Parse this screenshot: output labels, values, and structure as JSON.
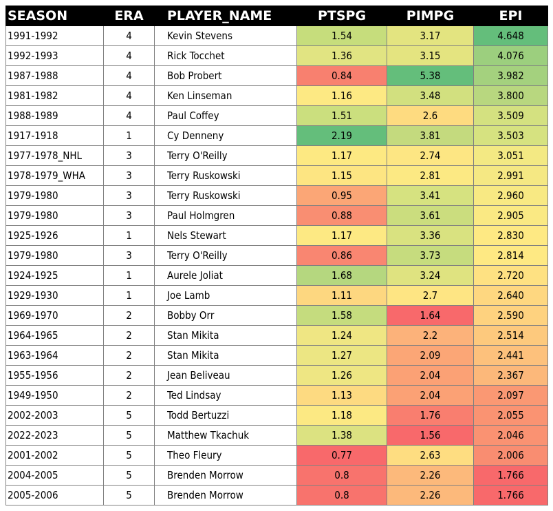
{
  "table": {
    "headers": {
      "season": "SEASON",
      "era": "ERA",
      "player": "PLAYER_NAME",
      "ptspg": "PTSPG",
      "pimpg": "PIMPG",
      "epi": "EPI"
    },
    "rows": [
      {
        "season": "1991-1992",
        "era": "4",
        "player": "Kevin Stevens",
        "ptspg": "1.54",
        "pimpg": "3.17",
        "epi": "4.648",
        "ptspg_color": "#c6dd7c",
        "pimpg_color": "#e3e480",
        "epi_color": "#64be7b"
      },
      {
        "season": "1992-1993",
        "era": "4",
        "player": "Rick Tocchet",
        "ptspg": "1.36",
        "pimpg": "3.15",
        "epi": "4.076",
        "ptspg_color": "#e1e482",
        "pimpg_color": "#e4e480",
        "epi_color": "#9ccf7e"
      },
      {
        "season": "1987-1988",
        "era": "4",
        "player": "Bob Probert",
        "ptspg": "0.84",
        "pimpg": "5.38",
        "epi": "3.982",
        "ptspg_color": "#f8806f",
        "pimpg_color": "#64be7b",
        "epi_color": "#a4d17e"
      },
      {
        "season": "1981-1982",
        "era": "4",
        "player": "Ken Linseman",
        "ptspg": "1.16",
        "pimpg": "3.48",
        "epi": "3.800",
        "ptspg_color": "#fde983",
        "pimpg_color": "#d2e07f",
        "epi_color": "#b8d77f"
      },
      {
        "season": "1988-1989",
        "era": "4",
        "player": "Paul Coffey",
        "ptspg": "1.51",
        "pimpg": "2.6",
        "epi": "3.509",
        "ptspg_color": "#cbdf7e",
        "pimpg_color": "#fedb80",
        "epi_color": "#d4e180"
      },
      {
        "season": "1917-1918",
        "era": "1",
        "player": "Cy Denneny",
        "ptspg": "2.19",
        "pimpg": "3.81",
        "epi": "3.503",
        "ptspg_color": "#64be7b",
        "pimpg_color": "#c4da7e",
        "epi_color": "#d6e280"
      },
      {
        "season": "1977-1978_NHL",
        "era": "3",
        "player": "Terry O'Reilly",
        "ptspg": "1.17",
        "pimpg": "2.74",
        "epi": "3.051",
        "ptspg_color": "#fde982",
        "pimpg_color": "#fde683",
        "epi_color": "#f3e983"
      },
      {
        "season": "1978-1979_WHA",
        "era": "3",
        "player": "Terry Ruskowski",
        "ptspg": "1.15",
        "pimpg": "2.81",
        "epi": "2.991",
        "ptspg_color": "#fde582",
        "pimpg_color": "#fce983",
        "epi_color": "#f5e883"
      },
      {
        "season": "1979-1980",
        "era": "3",
        "player": "Terry Ruskowski",
        "ptspg": "0.95",
        "pimpg": "3.41",
        "epi": "2.960",
        "ptspg_color": "#fba676",
        "pimpg_color": "#d6e280",
        "epi_color": "#f8e983"
      },
      {
        "season": "1979-1980",
        "era": "3",
        "player": "Paul Holmgren",
        "ptspg": "0.88",
        "pimpg": "3.61",
        "epi": "2.905",
        "ptspg_color": "#f98e72",
        "pimpg_color": "#cbdd7e",
        "epi_color": "#fae983"
      },
      {
        "season": "1925-1926",
        "era": "1",
        "player": "Nels Stewart",
        "ptspg": "1.17",
        "pimpg": "3.36",
        "epi": "2.830",
        "ptspg_color": "#fde983",
        "pimpg_color": "#d9e280",
        "epi_color": "#fee983"
      },
      {
        "season": "1979-1980",
        "era": "3",
        "player": "Terry O'Reilly",
        "ptspg": "0.86",
        "pimpg": "3.73",
        "epi": "2.814",
        "ptspg_color": "#f98671",
        "pimpg_color": "#c6dc7e",
        "epi_color": "#fee983"
      },
      {
        "season": "1924-1925",
        "era": "1",
        "player": "Aurele Joliat",
        "ptspg": "1.68",
        "pimpg": "3.24",
        "epi": "2.720",
        "ptspg_color": "#b5d77f",
        "pimpg_color": "#dfe380",
        "epi_color": "#fee182"
      },
      {
        "season": "1929-1930",
        "era": "1",
        "player": "Joe Lamb",
        "ptspg": "1.11",
        "pimpg": "2.7",
        "epi": "2.640",
        "ptspg_color": "#fdd780",
        "pimpg_color": "#fee583",
        "epi_color": "#fed780"
      },
      {
        "season": "1969-1970",
        "era": "2",
        "player": "Bobby Orr",
        "ptspg": "1.58",
        "pimpg": "1.64",
        "epi": "2.590",
        "ptspg_color": "#c5dc7e",
        "pimpg_color": "#f8696b",
        "epi_color": "#fed27f"
      },
      {
        "season": "1964-1965",
        "era": "2",
        "player": "Stan Mikita",
        "ptspg": "1.24",
        "pimpg": "2.2",
        "epi": "2.514",
        "ptspg_color": "#efe683",
        "pimpg_color": "#fcb27a",
        "epi_color": "#fdc97d"
      },
      {
        "season": "1963-1964",
        "era": "2",
        "player": "Stan Mikita",
        "ptspg": "1.27",
        "pimpg": "2.09",
        "epi": "2.441",
        "ptspg_color": "#ece683",
        "pimpg_color": "#fba676",
        "epi_color": "#fdc17c"
      },
      {
        "season": "1955-1956",
        "era": "2",
        "player": "Jean Beliveau",
        "ptspg": "1.26",
        "pimpg": "2.04",
        "epi": "2.367",
        "ptspg_color": "#eee683",
        "pimpg_color": "#fba175",
        "epi_color": "#fcb87a"
      },
      {
        "season": "1949-1950",
        "era": "2",
        "player": "Ted Lindsay",
        "ptspg": "1.13",
        "pimpg": "2.04",
        "epi": "2.097",
        "ptspg_color": "#fdda81",
        "pimpg_color": "#fba175",
        "epi_color": "#fa9873"
      },
      {
        "season": "2002-2003",
        "era": "5",
        "player": "Todd Bertuzzi",
        "ptspg": "1.18",
        "pimpg": "1.76",
        "epi": "2.055",
        "ptspg_color": "#fce983",
        "pimpg_color": "#f97e6f",
        "epi_color": "#fa9372"
      },
      {
        "season": "2022-2023",
        "era": "5",
        "player": "Matthew Tkachuk",
        "ptspg": "1.38",
        "pimpg": "1.56",
        "epi": "2.046",
        "ptspg_color": "#dce281",
        "pimpg_color": "#f8696b",
        "epi_color": "#fa9272"
      },
      {
        "season": "2001-2002",
        "era": "5",
        "player": "Theo Fleury",
        "ptspg": "0.77",
        "pimpg": "2.63",
        "epi": "2.006",
        "ptspg_color": "#f8696b",
        "pimpg_color": "#fedd81",
        "epi_color": "#f98d71"
      },
      {
        "season": "2004-2005",
        "era": "5",
        "player": "Brenden Morrow",
        "ptspg": "0.8",
        "pimpg": "2.26",
        "epi": "1.766",
        "ptspg_color": "#f8736d",
        "pimpg_color": "#fcb97b",
        "epi_color": "#f8696b"
      },
      {
        "season": "2005-2006",
        "era": "5",
        "player": "Brenden Morrow",
        "ptspg": "0.8",
        "pimpg": "2.26",
        "epi": "1.766",
        "ptspg_color": "#f8736d",
        "pimpg_color": "#fcb97b",
        "epi_color": "#f8696b"
      }
    ]
  }
}
